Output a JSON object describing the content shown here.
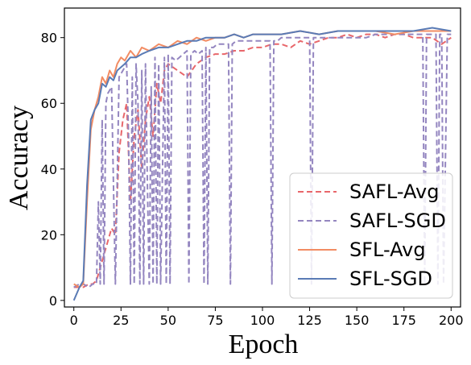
{
  "chart_data": {
    "type": "line",
    "title": "",
    "xlabel": "Epoch",
    "ylabel": "Accuracy",
    "xlim": [
      -5,
      205
    ],
    "ylim": [
      -2,
      89
    ],
    "xticks": [
      0,
      25,
      50,
      75,
      100,
      125,
      150,
      175,
      200
    ],
    "yticks": [
      0,
      20,
      40,
      60,
      80
    ],
    "grid": false,
    "legend_position": "lower-right",
    "series": [
      {
        "name": "SAFL-Avg",
        "color": "#e8676b",
        "style": "dashed",
        "x": [
          0,
          5,
          8,
          10,
          12,
          14,
          16,
          18,
          20,
          22,
          24,
          26,
          28,
          30,
          32,
          34,
          36,
          38,
          40,
          42,
          44,
          46,
          48,
          50,
          55,
          60,
          65,
          70,
          75,
          80,
          85,
          90,
          95,
          100,
          105,
          110,
          115,
          120,
          125,
          130,
          135,
          140,
          145,
          150,
          155,
          160,
          165,
          170,
          175,
          180,
          185,
          190,
          195,
          200
        ],
        "values": [
          4,
          4,
          5,
          5,
          6,
          10,
          14,
          18,
          22,
          20,
          45,
          55,
          60,
          30,
          50,
          58,
          40,
          55,
          62,
          50,
          66,
          60,
          70,
          72,
          70,
          68,
          72,
          74,
          75,
          75,
          76,
          76,
          77,
          77,
          78,
          78,
          77,
          79,
          78,
          79,
          80,
          80,
          81,
          80,
          81,
          81,
          80,
          81,
          81,
          80,
          80,
          80,
          78,
          80
        ]
      },
      {
        "name": "SAFL-SGD",
        "color": "#9486c0",
        "style": "dashed",
        "x": [
          0,
          3,
          5,
          8,
          10,
          12,
          13,
          14,
          15,
          16,
          17,
          18,
          20,
          22,
          24,
          26,
          28,
          29,
          30,
          31,
          32,
          33,
          34,
          35,
          36,
          37,
          38,
          39,
          40,
          41,
          42,
          43,
          44,
          45,
          46,
          48,
          49,
          50,
          51,
          52,
          54,
          56,
          58,
          60,
          61,
          62,
          64,
          66,
          68,
          69,
          70,
          71,
          72,
          74,
          76,
          78,
          80,
          82,
          83,
          84,
          86,
          88,
          90,
          95,
          100,
          104,
          105,
          106,
          108,
          110,
          115,
          120,
          125,
          126,
          127,
          128,
          130,
          135,
          140,
          145,
          150,
          155,
          160,
          165,
          170,
          175,
          180,
          185,
          186,
          187,
          188,
          190,
          192,
          193,
          194,
          195,
          196,
          198,
          200
        ],
        "values": [
          4,
          5,
          5,
          4,
          5,
          5,
          30,
          5,
          55,
          5,
          60,
          63,
          65,
          5,
          68,
          70,
          72,
          50,
          5,
          68,
          5,
          72,
          60,
          5,
          70,
          5,
          72,
          35,
          5,
          65,
          5,
          74,
          5,
          72,
          5,
          74,
          5,
          75,
          5,
          74,
          73,
          74,
          75,
          76,
          5,
          75,
          76,
          75,
          76,
          5,
          77,
          5,
          77,
          77,
          78,
          78,
          78,
          78,
          5,
          78,
          79,
          79,
          79,
          79,
          79,
          79,
          5,
          79,
          79,
          80,
          80,
          80,
          80,
          5,
          80,
          80,
          80,
          80,
          80,
          80,
          80,
          80,
          81,
          81,
          81,
          81,
          81,
          81,
          5,
          81,
          81,
          81,
          81,
          5,
          81,
          81,
          5,
          81,
          81
        ]
      },
      {
        "name": "SFL-Avg",
        "color": "#f28c63",
        "style": "solid",
        "x": [
          0,
          3,
          5,
          7,
          9,
          11,
          13,
          15,
          17,
          19,
          21,
          23,
          25,
          27,
          30,
          33,
          36,
          40,
          45,
          50,
          55,
          60,
          65,
          70,
          75,
          80,
          85,
          90,
          95,
          100,
          110,
          120,
          130,
          140,
          150,
          160,
          170,
          180,
          190,
          200
        ],
        "values": [
          5,
          4,
          5,
          30,
          52,
          58,
          62,
          68,
          66,
          70,
          68,
          72,
          74,
          73,
          76,
          74,
          77,
          76,
          78,
          77,
          79,
          78,
          80,
          79,
          80,
          80,
          81,
          80,
          81,
          81,
          81,
          82,
          81,
          82,
          82,
          82,
          81,
          82,
          82,
          82
        ]
      },
      {
        "name": "SFL-SGD",
        "color": "#5a7bb5",
        "style": "solid",
        "x": [
          0,
          3,
          5,
          7,
          9,
          11,
          13,
          15,
          17,
          19,
          21,
          23,
          25,
          27,
          30,
          33,
          36,
          40,
          45,
          50,
          55,
          60,
          65,
          70,
          75,
          80,
          85,
          90,
          95,
          100,
          110,
          120,
          130,
          140,
          150,
          160,
          170,
          180,
          190,
          200
        ],
        "values": [
          0,
          4,
          6,
          35,
          55,
          58,
          60,
          66,
          65,
          68,
          67,
          70,
          71,
          72,
          74,
          74,
          75,
          76,
          77,
          77,
          78,
          79,
          79,
          80,
          80,
          80,
          81,
          80,
          81,
          81,
          81,
          82,
          81,
          82,
          82,
          82,
          82,
          82,
          83,
          82
        ]
      }
    ]
  }
}
